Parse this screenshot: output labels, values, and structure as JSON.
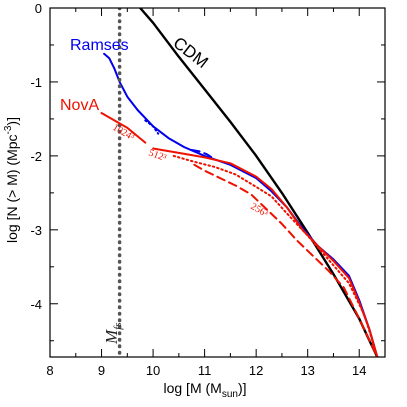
{
  "chart_data": {
    "type": "line",
    "xlabel": "log [M (M",
    "xlabel_sub": "sun",
    "xlabel_end": ")]",
    "ylabel": "log [N (> M) (Mpc",
    "ylabel_sup": "-3",
    "ylabel_end": ")]",
    "xlim": [
      8,
      14.5
    ],
    "ylim": [
      -4.72,
      0
    ],
    "x_ticks": [
      8,
      9,
      10,
      11,
      12,
      13,
      14
    ],
    "y_ticks": [
      0,
      -1,
      -2,
      -3,
      -4
    ],
    "x_tick_labels": [
      "8",
      "9",
      "10",
      "11",
      "12",
      "13",
      "14"
    ],
    "y_tick_labels": [
      "0",
      "-1",
      "-2",
      "-3",
      "-4"
    ],
    "grid": false,
    "colors": {
      "cdm": "#000000",
      "ramses": "#0000ee",
      "nova": "#ee1100",
      "vline": "#555555"
    },
    "series": [
      {
        "name": "CDM",
        "style": "solid",
        "color": "#000000",
        "x": [
          9.75,
          10.0,
          10.5,
          11.0,
          11.5,
          12.0,
          12.5,
          13.0,
          13.5,
          14.0,
          14.2,
          14.35
        ],
        "y": [
          0.0,
          -0.2,
          -0.66,
          -1.1,
          -1.54,
          -2.0,
          -2.5,
          -3.04,
          -3.6,
          -4.2,
          -4.5,
          -4.72
        ]
      },
      {
        "name": "Ramses",
        "style": "solid",
        "color": "#0000ee",
        "x": [
          9.05,
          9.15,
          9.25,
          9.35,
          9.5,
          9.7,
          10.0,
          10.3,
          10.6,
          11.0,
          11.5,
          12.0,
          12.3,
          12.6,
          12.9,
          13.2,
          13.5,
          13.8,
          14.0,
          14.2,
          14.35
        ],
        "y": [
          -0.62,
          -0.68,
          -0.82,
          -1.0,
          -1.2,
          -1.38,
          -1.6,
          -1.76,
          -1.88,
          -2.0,
          -2.12,
          -2.3,
          -2.48,
          -2.7,
          -2.98,
          -3.22,
          -3.4,
          -3.62,
          -3.95,
          -4.35,
          -4.72
        ]
      },
      {
        "name": "Ramses_lowres",
        "style": "dotted",
        "color": "#0000ee",
        "x": [
          9.85,
          10.0,
          10.1
        ],
        "y": [
          -1.52,
          -1.6,
          -1.7
        ]
      },
      {
        "name": "Ramses_dashed",
        "style": "dashed",
        "color": "#0000ee",
        "x": [
          10.75,
          10.9,
          11.05,
          11.2
        ],
        "y": [
          -1.92,
          -1.94,
          -1.98,
          -2.05
        ]
      },
      {
        "name": "NovA 1024³",
        "style": "solid",
        "color": "#ee1100",
        "x": [
          10.0,
          10.5,
          11.0,
          11.5,
          12.0,
          12.3,
          12.6,
          12.9,
          13.2,
          13.5,
          13.8,
          14.0,
          14.2,
          14.35
        ],
        "y": [
          -1.9,
          -1.96,
          -2.02,
          -2.1,
          -2.28,
          -2.45,
          -2.7,
          -3.0,
          -3.22,
          -3.42,
          -3.65,
          -3.98,
          -4.35,
          -4.72
        ]
      },
      {
        "name": "NovA 512³",
        "style": "dotted",
        "color": "#ee1100",
        "x": [
          10.4,
          10.8,
          11.2,
          11.6,
          12.0,
          12.3,
          12.6,
          13.0,
          13.4,
          13.8,
          14.1,
          14.35
        ],
        "y": [
          -2.0,
          -2.08,
          -2.15,
          -2.25,
          -2.42,
          -2.55,
          -2.78,
          -3.08,
          -3.4,
          -3.72,
          -4.15,
          -4.72
        ]
      },
      {
        "name": "NovA 256³",
        "style": "dashed",
        "color": "#ee1100",
        "x": [
          10.8,
          11.0,
          11.3,
          11.6,
          11.9,
          12.2,
          12.5,
          12.8,
          13.1,
          13.4,
          13.7,
          14.0,
          14.35
        ],
        "y": [
          -2.12,
          -2.2,
          -2.3,
          -2.4,
          -2.52,
          -2.72,
          -2.92,
          -3.15,
          -3.35,
          -3.55,
          -3.78,
          -4.2,
          -4.72
        ]
      },
      {
        "name": "M_fs",
        "style": "dotted",
        "color": "#555555",
        "x": [
          9.35,
          9.35
        ],
        "y": [
          0.0,
          -4.72
        ]
      }
    ],
    "nova_pre_break": {
      "x": [
        9.0,
        9.5,
        9.85
      ],
      "y": [
        -1.42,
        -1.62,
        -1.82
      ]
    },
    "annotations": {
      "ramses": "Ramses",
      "nova": "NovA",
      "cdm": "CDM",
      "r1024": "1024³",
      "r512": "512³",
      "r256": "256³",
      "mfs_main": "M",
      "mfs_sub": "fs"
    }
  }
}
